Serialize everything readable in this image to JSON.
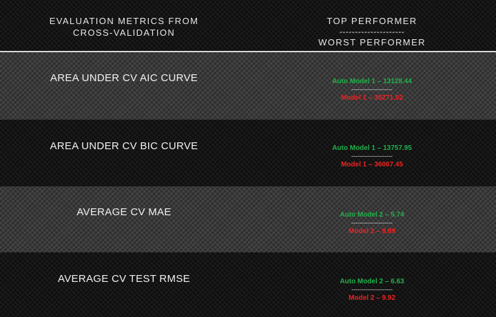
{
  "header": {
    "metrics_title_line1": "EVALUATION METRICS FROM",
    "metrics_title_line2": "CROSS-VALIDATION",
    "top_label": "TOP PERFORMER",
    "separator": "---------------------",
    "worst_label": "WORST PERFORMER"
  },
  "rows": [
    {
      "metric": "AREA UNDER CV AIC CURVE",
      "top": "Auto Model 1 – 13128.44",
      "separator": "--------------------",
      "worst": "Model 1 – 35271.02"
    },
    {
      "metric": "AREA UNDER CV BIC CURVE",
      "top": "Auto Model 1 – 13757.95",
      "separator": "--------------------",
      "worst": "Model 1 – 36067.45"
    },
    {
      "metric": "AVERAGE CV MAE",
      "top": "Auto Model 2 – 5.74",
      "separator": "--------------------",
      "worst": "Model 2 – 9.89"
    },
    {
      "metric": "AVERAGE CV TEST RMSE",
      "top": "Auto Model 2 – 6.63",
      "separator": "--------------------",
      "worst": "Model 2 – 9.92"
    }
  ],
  "colors": {
    "top_performer": "#22b04b",
    "worst_performer": "#ee2222",
    "text": "#f2f2f2"
  }
}
